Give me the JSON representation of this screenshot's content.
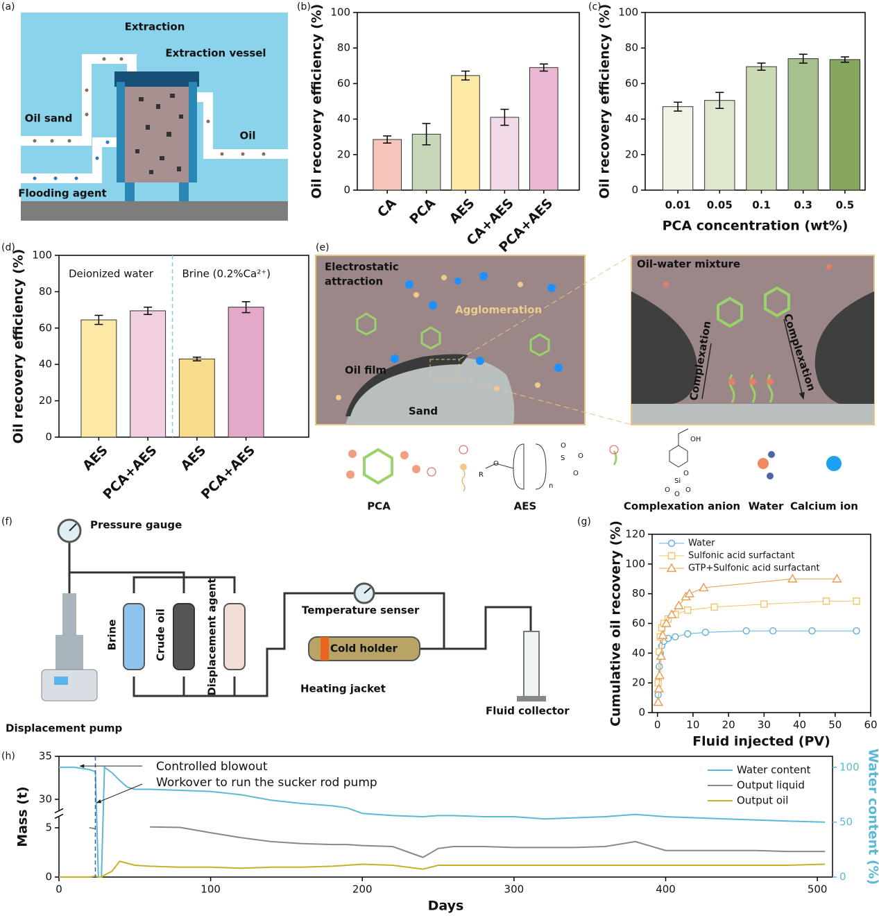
{
  "panel_labels": [
    "(a)",
    "(b)",
    "(c)",
    "(d)",
    "(e)",
    "(f)",
    "(g)",
    "(h)"
  ],
  "diagram_a": {
    "extraction": "Extraction",
    "vessel": "Extraction vessel",
    "oil_sand": "Oil sand",
    "oil": "Oil",
    "flooding_agent": "Flooding agent"
  },
  "diagram_e": {
    "attraction": [
      "Electrostatic",
      "attraction"
    ],
    "agglomeration": "Agglomeration",
    "oil_film": "Oil film",
    "sand": "Sand",
    "mixture": "Oil-water mixture",
    "complexation": [
      "Complexation",
      "Complexation"
    ],
    "aes_atoms": [
      "R",
      "O",
      "n",
      "S",
      "O",
      "O",
      "O"
    ],
    "anion_atoms": [
      "OH",
      "O",
      "Si",
      "O",
      "O",
      "O"
    ],
    "legend": [
      "PCA",
      "AES",
      "Complexation anion",
      "Water",
      "Calcium ion"
    ]
  },
  "diagram_f": {
    "pressure_gauge": "Pressure gauge",
    "brine": "Brine",
    "crude_oil": "Crude oil",
    "displacement_agent": "Displacement agent",
    "temperature_senser": "Temperature senser",
    "cold_holder": "Cold holder",
    "heating_jacket": "Heating jacket",
    "fluid_collector": "Fluid collector",
    "displacement_pump": "Displacement pump"
  },
  "chart_data": [
    {
      "type": "bar",
      "ylabel": "Oil recovery efficiency (%)",
      "categories": [
        "CA",
        "PCA",
        "AES",
        "CA+AES",
        "PCA+AES"
      ],
      "values": [
        28.5,
        31.5,
        64.5,
        41,
        69
      ],
      "errors": [
        2,
        6,
        2.5,
        4.5,
        2
      ],
      "colors": [
        "#f6c6bd",
        "#c7d6b6",
        "#fde8a6",
        "#f1d9e7",
        "#eab6d0"
      ],
      "ylim": [
        0,
        100
      ],
      "yticks": [
        0,
        20,
        40,
        60,
        80,
        100
      ]
    },
    {
      "type": "bar",
      "ylabel": "Oil recovery efficiency (%)",
      "xlabel": "PCA concentration (wt%)",
      "categories": [
        "0.01",
        "0.05",
        "0.1",
        "0.3",
        "0.5"
      ],
      "values": [
        47,
        50.5,
        69.5,
        74,
        73.5
      ],
      "errors": [
        2.5,
        4.5,
        2,
        2.5,
        1.5
      ],
      "colors": [
        "#eef3e6",
        "#dde8cf",
        "#c9dab5",
        "#a7c18e",
        "#86a660"
      ],
      "ylim": [
        0,
        100
      ],
      "yticks": [
        0,
        20,
        40,
        60,
        80,
        100
      ]
    },
    {
      "type": "bar",
      "ylabel": "Oil recovery efficiency (%)",
      "categories": [
        "AES",
        "PCA+AES",
        "AES",
        "PCA+AES"
      ],
      "values": [
        64.5,
        69.5,
        43,
        71.5
      ],
      "errors": [
        2.5,
        2,
        1,
        3
      ],
      "colors": [
        "#fde8a6",
        "#f1cfe1",
        "#f8dc8c",
        "#e4a9c8"
      ],
      "ylim": [
        0,
        100
      ],
      "yticks": [
        0,
        20,
        40,
        60,
        80,
        100
      ],
      "annotations": [
        "Deionized water",
        "Brine (0.2%Ca²⁺)"
      ]
    },
    {
      "type": "line",
      "xlabel": "Fluid injected (PV)",
      "ylabel": "Cumulative oil recovery (%)",
      "xlim": [
        -1.5,
        60
      ],
      "xticks": [
        0,
        10,
        20,
        30,
        40,
        50,
        60
      ],
      "ylim": [
        0,
        120
      ],
      "yticks": [
        0,
        20,
        40,
        60,
        80,
        100,
        120
      ],
      "legend": "upper left",
      "series": [
        {
          "name": "Water",
          "color": "#5dade2",
          "marker": "circle",
          "x": [
            0.2,
            0.5,
            0.8,
            1.2,
            1.8,
            3,
            5,
            8.5,
            13.5,
            25,
            32.5,
            43.5,
            56
          ],
          "values": [
            12,
            31,
            40,
            45,
            48,
            50,
            51,
            53,
            54,
            55,
            55,
            55,
            55
          ]
        },
        {
          "name": "Sulfonic acid surfactant",
          "color": "#f2c46a",
          "marker": "square",
          "x": [
            0.2,
            0.5,
            0.8,
            1.2,
            1.8,
            3,
            5,
            8.5,
            16,
            30,
            47.5,
            56
          ],
          "values": [
            20,
            41,
            51,
            57,
            60,
            63,
            66,
            69,
            71,
            73,
            75,
            75
          ]
        },
        {
          "name": "GTP+Sulfonic acid surfactant",
          "color": "#e89a4e",
          "marker": "triangle",
          "x": [
            0.2,
            0.4,
            0.6,
            1,
            1.5,
            2.5,
            4,
            6,
            8,
            9,
            13,
            38,
            50.5
          ],
          "values": [
            7,
            16,
            25,
            38,
            52,
            60,
            66,
            72,
            78,
            80,
            84,
            90,
            90
          ]
        }
      ]
    },
    {
      "type": "line",
      "xlabel": "Days",
      "ylabel": "Mass (t)",
      "y2label": "Water content (%)",
      "legend": "upper right",
      "x": [
        0,
        10,
        20,
        24,
        26,
        28,
        30,
        35,
        40,
        45,
        50,
        60,
        80,
        100,
        120,
        140,
        160,
        180,
        190,
        200,
        220,
        240,
        250,
        260,
        280,
        300,
        320,
        340,
        360,
        380,
        400,
        420,
        440,
        460,
        480,
        505
      ],
      "xlim": [
        0,
        510
      ],
      "xticks": [
        0,
        100,
        200,
        300,
        400,
        500
      ],
      "ylim": [
        0,
        35
      ],
      "yticks": [
        0,
        5,
        30,
        35
      ],
      "ybreak": [
        5,
        30
      ],
      "y2lim": [
        0,
        110
      ],
      "y2ticks": [
        0,
        50,
        100
      ],
      "annotations": [
        "Controlled blowout",
        "Workover to run the sucker rod pump"
      ],
      "series": [
        {
          "name": "Water content",
          "color": "#5bb8d6",
          "axis": "y2",
          "values": [
            100,
            100,
            98,
            96,
            0,
            0,
            100,
            95,
            88,
            82,
            80,
            80,
            79,
            78,
            75,
            70,
            67,
            65,
            63,
            58,
            56,
            55,
            56,
            56,
            55,
            55,
            53,
            54,
            55,
            57,
            55,
            54,
            53,
            52,
            51,
            50
          ]
        },
        {
          "name": "Output liquid",
          "color": "#888888",
          "values": [
            null,
            null,
            5.1,
            4.9,
            null,
            null,
            null,
            null,
            null,
            null,
            null,
            5.8,
            5.3,
            4.5,
            4,
            3.6,
            3.4,
            3.3,
            3.3,
            3.2,
            3.1,
            2.0,
            2.9,
            3.1,
            3.1,
            3.0,
            3.0,
            3.0,
            3.1,
            3.6,
            2.7,
            2.7,
            2.7,
            2.7,
            2.6,
            2.6
          ]
        },
        {
          "name": "Output oil",
          "color": "#c8b02c",
          "values": [
            0,
            0,
            0,
            0.1,
            0,
            0,
            0.2,
            0.6,
            1.6,
            1.4,
            1.2,
            1.1,
            1.0,
            1.0,
            0.9,
            1.0,
            1.0,
            1.1,
            1.2,
            1.3,
            1.2,
            0.8,
            1.2,
            1.2,
            1.2,
            1.2,
            1.2,
            1.2,
            1.2,
            1.2,
            1.2,
            1.2,
            1.2,
            1.2,
            1.2,
            1.3
          ]
        }
      ]
    }
  ]
}
